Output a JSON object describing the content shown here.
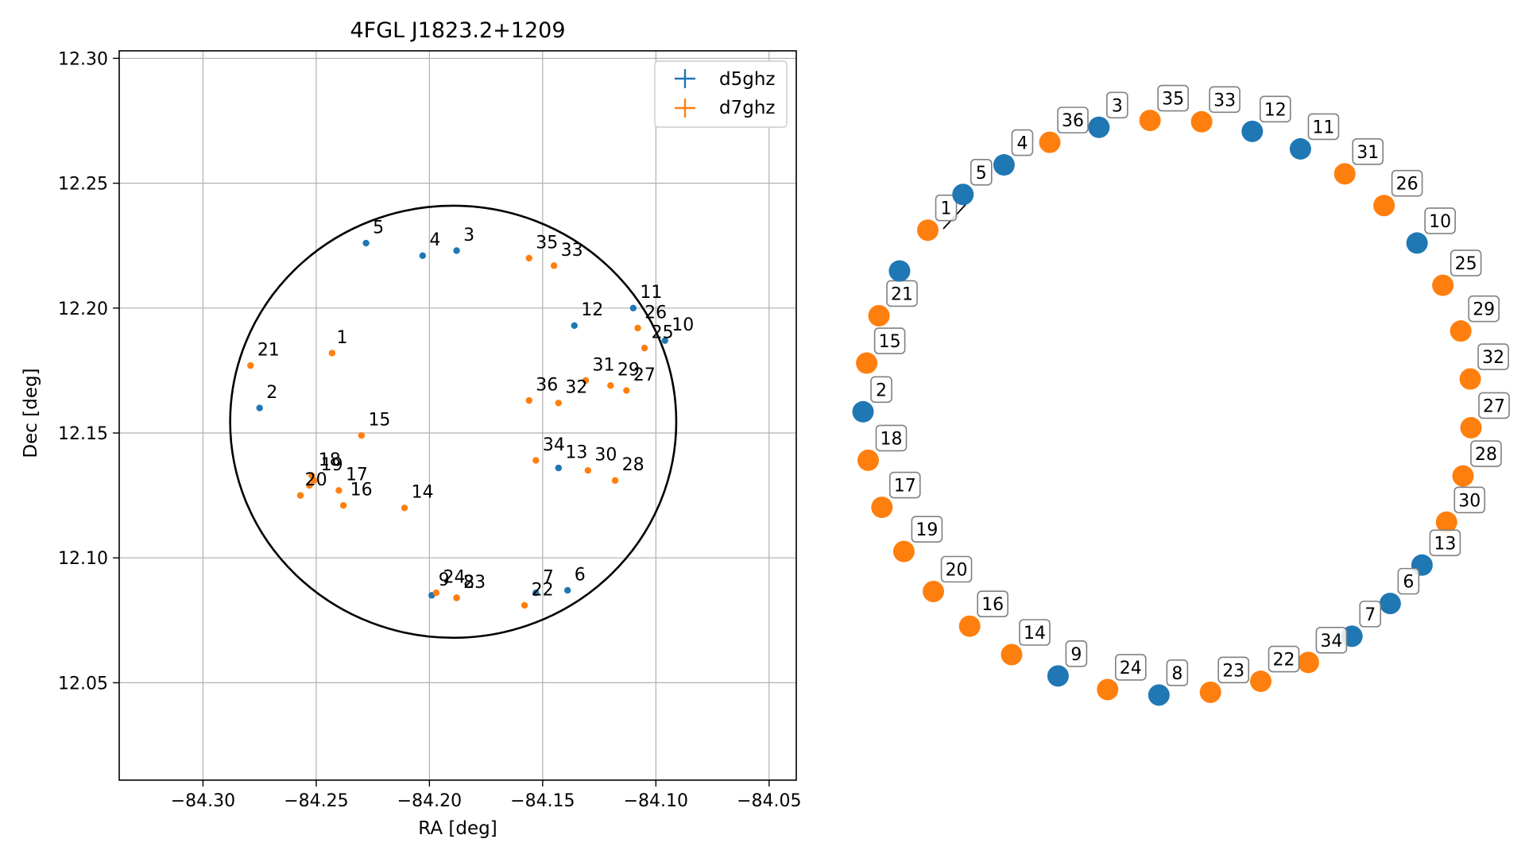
{
  "colors": {
    "d5ghz": "#1f77b4",
    "d7ghz": "#ff7f0e",
    "circle": "#000000",
    "grid": "#b0b0b0"
  },
  "chart_data": [
    {
      "type": "scatter",
      "title": "4FGL J1823.2+1209",
      "xlabel": "RA [deg]",
      "ylabel": "Dec [deg]",
      "xlim": [
        -84.337,
        -84.038
      ],
      "ylim": [
        12.011,
        12.303
      ],
      "xticks": [
        -84.3,
        -84.25,
        -84.2,
        -84.15,
        -84.1,
        -84.05
      ],
      "xtick_labels": [
        "−84.30",
        "−84.25",
        "−84.20",
        "−84.15",
        "−84.10",
        "−84.05"
      ],
      "yticks": [
        12.05,
        12.1,
        12.15,
        12.2,
        12.25,
        12.3
      ],
      "ytick_labels": [
        "12.05",
        "12.10",
        "12.15",
        "12.20",
        "12.25",
        "12.30"
      ],
      "grid": true,
      "legend_position": "top-right",
      "circle": {
        "center": [
          -84.1895,
          12.1545
        ],
        "radius_x": 0.0985,
        "radius_y": 0.0865
      },
      "series": [
        {
          "name": "d5ghz",
          "points": [
            {
              "id": "2",
              "x": -84.275,
              "y": 12.16
            },
            {
              "id": "3",
              "x": -84.188,
              "y": 12.223
            },
            {
              "id": "4",
              "x": -84.203,
              "y": 12.221
            },
            {
              "id": "5",
              "x": -84.228,
              "y": 12.226
            },
            {
              "id": "6",
              "x": -84.139,
              "y": 12.087
            },
            {
              "id": "7",
              "x": -84.153,
              "y": 12.086
            },
            {
              "id": "8",
              "x": -84.188,
              "y": 12.084
            },
            {
              "id": "9",
              "x": -84.199,
              "y": 12.085
            },
            {
              "id": "10",
              "x": -84.096,
              "y": 12.187
            },
            {
              "id": "11",
              "x": -84.11,
              "y": 12.2
            },
            {
              "id": "12",
              "x": -84.136,
              "y": 12.193
            },
            {
              "id": "13",
              "x": -84.143,
              "y": 12.136
            }
          ]
        },
        {
          "name": "d7ghz",
          "points": [
            {
              "id": "1",
              "x": -84.243,
              "y": 12.182
            },
            {
              "id": "14",
              "x": -84.211,
              "y": 12.12
            },
            {
              "id": "15",
              "x": -84.23,
              "y": 12.149
            },
            {
              "id": "16",
              "x": -84.238,
              "y": 12.121
            },
            {
              "id": "17",
              "x": -84.24,
              "y": 12.127
            },
            {
              "id": "18",
              "x": -84.252,
              "y": 12.133
            },
            {
              "id": "19",
              "x": -84.251,
              "y": 12.131
            },
            {
              "id": "20",
              "x": -84.253,
              "y": 12.129
            },
            {
              "id": "21",
              "x": -84.279,
              "y": 12.177
            },
            {
              "id": "22",
              "x": -84.158,
              "y": 12.081
            },
            {
              "id": "23",
              "x": -84.188,
              "y": 12.084
            },
            {
              "id": "24",
              "x": -84.197,
              "y": 12.086
            },
            {
              "id": "25",
              "x": -84.105,
              "y": 12.184
            },
            {
              "id": "26",
              "x": -84.108,
              "y": 12.192
            },
            {
              "id": "27",
              "x": -84.113,
              "y": 12.167
            },
            {
              "id": "28",
              "x": -84.118,
              "y": 12.131
            },
            {
              "id": "29",
              "x": -84.12,
              "y": 12.169
            },
            {
              "id": "30",
              "x": -84.13,
              "y": 12.135
            },
            {
              "id": "31",
              "x": -84.131,
              "y": 12.171
            },
            {
              "id": "32",
              "x": -84.143,
              "y": 12.162
            },
            {
              "id": "33",
              "x": -84.145,
              "y": 12.217
            },
            {
              "id": "34",
              "x": -84.153,
              "y": 12.139
            },
            {
              "id": "35",
              "x": -84.156,
              "y": 12.22
            },
            {
              "id": "36",
              "x": -84.156,
              "y": 12.163
            },
            {
              "id": "x",
              "x": -84.257,
              "y": 12.125
            }
          ]
        }
      ],
      "labels": [
        {
          "text": "1",
          "x": -84.241,
          "y": 12.186
        },
        {
          "text": "2",
          "x": -84.272,
          "y": 12.164
        },
        {
          "text": "3",
          "x": -84.185,
          "y": 12.227
        },
        {
          "text": "4",
          "x": -84.2,
          "y": 12.225
        },
        {
          "text": "5",
          "x": -84.225,
          "y": 12.23
        },
        {
          "text": "6",
          "x": -84.136,
          "y": 12.091
        },
        {
          "text": "7",
          "x": -84.15,
          "y": 12.09
        },
        {
          "text": "8",
          "x": -84.185,
          "y": 12.088
        },
        {
          "text": "9",
          "x": -84.196,
          "y": 12.089
        },
        {
          "text": "10",
          "x": -84.093,
          "y": 12.191
        },
        {
          "text": "11",
          "x": -84.107,
          "y": 12.204
        },
        {
          "text": "12",
          "x": -84.133,
          "y": 12.197
        },
        {
          "text": "13",
          "x": -84.14,
          "y": 12.14
        },
        {
          "text": "14",
          "x": -84.208,
          "y": 12.124
        },
        {
          "text": "15",
          "x": -84.227,
          "y": 12.153
        },
        {
          "text": "16",
          "x": -84.235,
          "y": 12.125
        },
        {
          "text": "17",
          "x": -84.237,
          "y": 12.131
        },
        {
          "text": "18",
          "x": -84.249,
          "y": 12.137
        },
        {
          "text": "19",
          "x": -84.248,
          "y": 12.135
        },
        {
          "text": "20",
          "x": -84.255,
          "y": 12.129
        },
        {
          "text": "21",
          "x": -84.276,
          "y": 12.181
        },
        {
          "text": "22",
          "x": -84.155,
          "y": 12.085
        },
        {
          "text": "23",
          "x": -84.185,
          "y": 12.088
        },
        {
          "text": "24",
          "x": -84.194,
          "y": 12.09
        },
        {
          "text": "25",
          "x": -84.102,
          "y": 12.188
        },
        {
          "text": "26",
          "x": -84.105,
          "y": 12.196
        },
        {
          "text": "27",
          "x": -84.11,
          "y": 12.171
        },
        {
          "text": "28",
          "x": -84.115,
          "y": 12.135
        },
        {
          "text": "29",
          "x": -84.117,
          "y": 12.173
        },
        {
          "text": "30",
          "x": -84.127,
          "y": 12.139
        },
        {
          "text": "31",
          "x": -84.128,
          "y": 12.175
        },
        {
          "text": "32",
          "x": -84.14,
          "y": 12.166
        },
        {
          "text": "33",
          "x": -84.142,
          "y": 12.221
        },
        {
          "text": "34",
          "x": -84.15,
          "y": 12.143
        },
        {
          "text": "35",
          "x": -84.153,
          "y": 12.224
        },
        {
          "text": "36",
          "x": -84.153,
          "y": 12.167
        }
      ]
    },
    {
      "type": "scatter",
      "title": "",
      "layout": "circular",
      "nodes": [
        {
          "id": "3",
          "series": "d5ghz"
        },
        {
          "id": "35",
          "series": "d7ghz"
        },
        {
          "id": "33",
          "series": "d7ghz"
        },
        {
          "id": "12",
          "series": "d5ghz"
        },
        {
          "id": "11",
          "series": "d5ghz"
        },
        {
          "id": "31",
          "series": "d7ghz"
        },
        {
          "id": "26",
          "series": "d7ghz"
        },
        {
          "id": "10",
          "series": "d5ghz"
        },
        {
          "id": "25",
          "series": "d7ghz"
        },
        {
          "id": "29",
          "series": "d7ghz"
        },
        {
          "id": "32",
          "series": "d7ghz"
        },
        {
          "id": "27",
          "series": "d7ghz"
        },
        {
          "id": "28",
          "series": "d7ghz"
        },
        {
          "id": "30",
          "series": "d7ghz"
        },
        {
          "id": "13",
          "series": "d5ghz"
        },
        {
          "id": "6",
          "series": "d5ghz"
        },
        {
          "id": "7",
          "series": "d5ghz"
        },
        {
          "id": "34",
          "series": "d7ghz"
        },
        {
          "id": "22",
          "series": "d7ghz"
        },
        {
          "id": "23",
          "series": "d7ghz"
        },
        {
          "id": "8",
          "series": "d5ghz"
        },
        {
          "id": "24",
          "series": "d7ghz"
        },
        {
          "id": "9",
          "series": "d5ghz"
        },
        {
          "id": "14",
          "series": "d7ghz"
        },
        {
          "id": "16",
          "series": "d7ghz"
        },
        {
          "id": "20",
          "series": "d7ghz"
        },
        {
          "id": "19",
          "series": "d7ghz"
        },
        {
          "id": "17",
          "series": "d7ghz"
        },
        {
          "id": "18",
          "series": "d7ghz"
        },
        {
          "id": "2",
          "series": "d5ghz"
        },
        {
          "id": "15",
          "series": "d7ghz"
        },
        {
          "id": "21",
          "series": "d7ghz"
        },
        {
          "id": "",
          "series": "d5ghz"
        },
        {
          "id": "1",
          "series": "d7ghz"
        },
        {
          "id": "5",
          "series": "d5ghz"
        },
        {
          "id": "4",
          "series": "d5ghz"
        },
        {
          "id": "36",
          "series": "d7ghz"
        }
      ]
    }
  ]
}
